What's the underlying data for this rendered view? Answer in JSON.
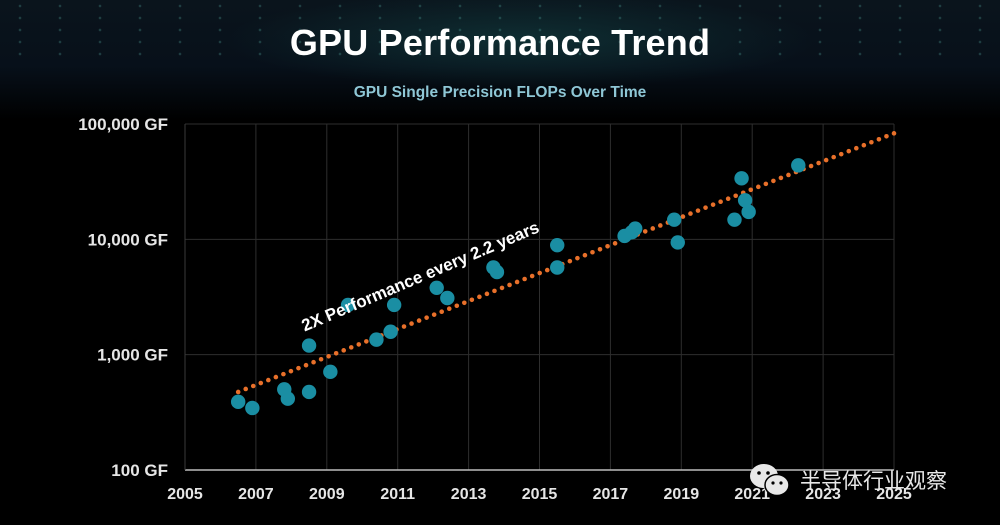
{
  "chart_data": {
    "type": "scatter",
    "title": "GPU Performance Trend",
    "subtitle": "GPU Single Precision FLOPs Over Time",
    "xlabel": "",
    "ylabel": "",
    "x_range": [
      2005,
      2025
    ],
    "y_range": [
      100,
      100000
    ],
    "y_scale": "log",
    "grid": true,
    "x_ticks": [
      2005,
      2007,
      2009,
      2011,
      2013,
      2015,
      2017,
      2019,
      2021,
      2023,
      2025
    ],
    "x_tick_labels": [
      "2005",
      "2007",
      "2009",
      "2011",
      "2013",
      "2015",
      "2017",
      "2019",
      "2021",
      "2023",
      "2025"
    ],
    "y_ticks": [
      100,
      1000,
      10000,
      100000
    ],
    "y_tick_labels": [
      "100 GF",
      "1,000 GF",
      "10,000 GF",
      "100,000 GF"
    ],
    "series": [
      {
        "name": "GPU single precision GFLOPs",
        "color": "#1a8ea3",
        "points": [
          {
            "x": 2006.5,
            "y": 390
          },
          {
            "x": 2006.9,
            "y": 345
          },
          {
            "x": 2007.8,
            "y": 500
          },
          {
            "x": 2007.9,
            "y": 415
          },
          {
            "x": 2008.5,
            "y": 475
          },
          {
            "x": 2008.5,
            "y": 1200
          },
          {
            "x": 2009.1,
            "y": 710
          },
          {
            "x": 2009.6,
            "y": 2700
          },
          {
            "x": 2010.4,
            "y": 1350
          },
          {
            "x": 2010.8,
            "y": 1580
          },
          {
            "x": 2010.9,
            "y": 2700
          },
          {
            "x": 2012.1,
            "y": 3800
          },
          {
            "x": 2012.4,
            "y": 3100
          },
          {
            "x": 2013.7,
            "y": 5700
          },
          {
            "x": 2013.8,
            "y": 5200
          },
          {
            "x": 2015.5,
            "y": 8900
          },
          {
            "x": 2015.5,
            "y": 5700
          },
          {
            "x": 2017.4,
            "y": 10700
          },
          {
            "x": 2017.6,
            "y": 11500
          },
          {
            "x": 2017.7,
            "y": 12400
          },
          {
            "x": 2018.8,
            "y": 14800
          },
          {
            "x": 2018.9,
            "y": 9400
          },
          {
            "x": 2020.5,
            "y": 14800
          },
          {
            "x": 2020.7,
            "y": 33800
          },
          {
            "x": 2020.8,
            "y": 21800
          },
          {
            "x": 2020.9,
            "y": 17300
          },
          {
            "x": 2022.3,
            "y": 43800
          }
        ]
      }
    ],
    "trendline": {
      "name": "2X Performance every 2.2 years",
      "style": "dotted",
      "color": "#e8702a",
      "start": {
        "x": 2006.5,
        "y": 475
      },
      "end": {
        "x": 2025.0,
        "y": 83000
      }
    },
    "annotations": [
      {
        "text": "2X Performance every 2.2 years",
        "x": 2011.7,
        "y": 4300
      }
    ]
  },
  "watermark": {
    "icon": "wechat-icon",
    "text": "半导体行业观察"
  }
}
